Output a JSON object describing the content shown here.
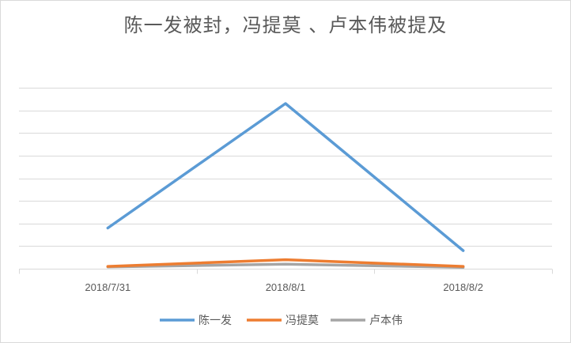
{
  "chart_data": {
    "type": "line",
    "title": "陈一发被封，冯提莫 、卢本伟被提及",
    "categories": [
      "2018/7/31",
      "2018/8/1",
      "2018/8/2"
    ],
    "series": [
      {
        "name": "陈一发",
        "color": "#5b9bd5",
        "values": [
          1800,
          7300,
          800
        ]
      },
      {
        "name": "冯提莫",
        "color": "#ed7d31",
        "values": [
          100,
          400,
          100
        ]
      },
      {
        "name": "卢本伟",
        "color": "#a5a5a5",
        "values": [
          80,
          200,
          60
        ]
      }
    ],
    "ylim": [
      0,
      8000
    ],
    "grid": true,
    "y_tick_labels_shown": false,
    "legend_position": "bottom"
  }
}
